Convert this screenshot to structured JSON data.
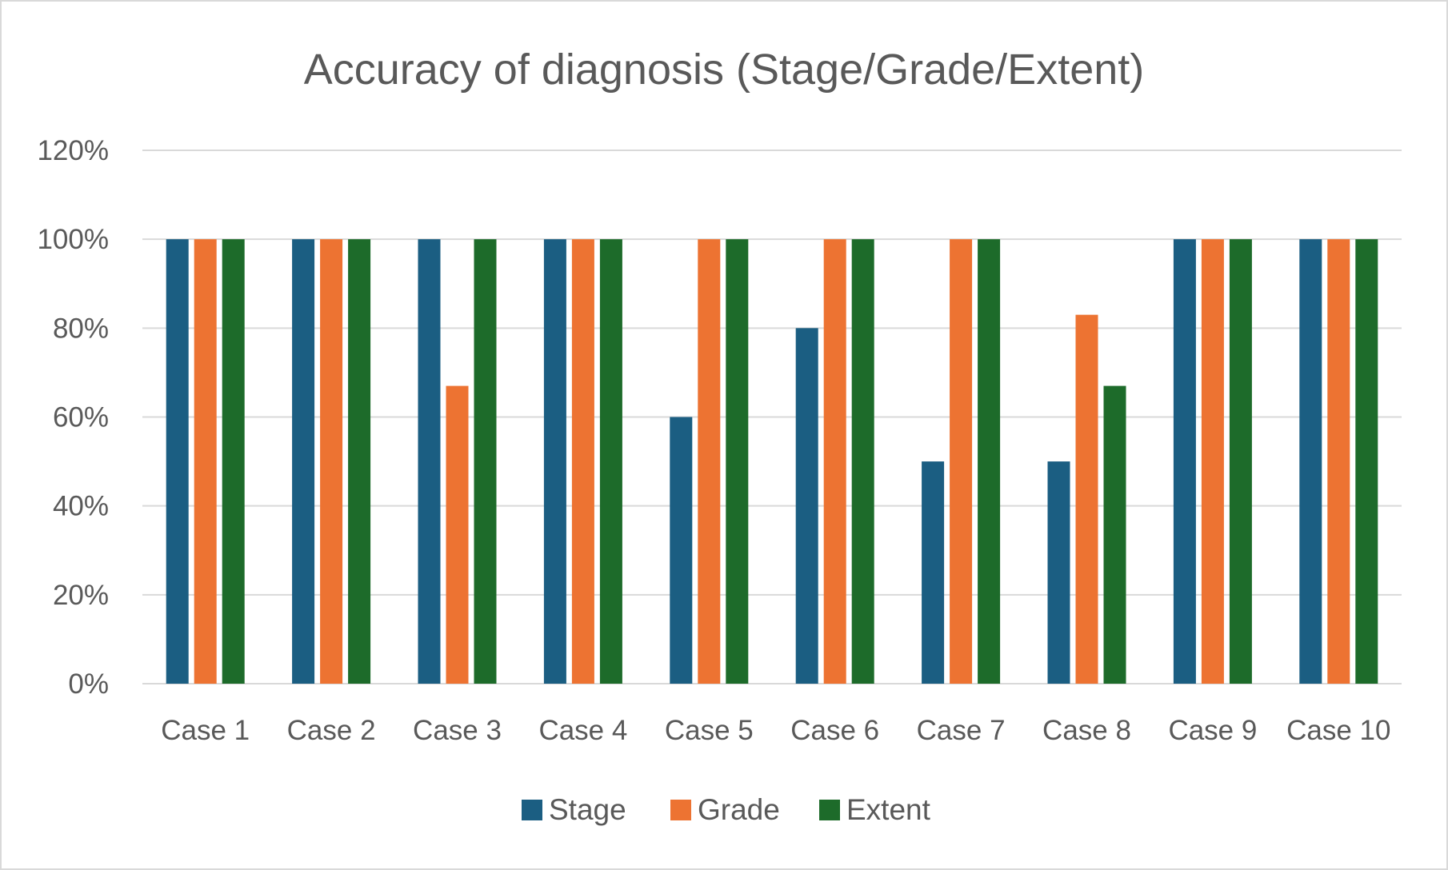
{
  "chart_data": {
    "type": "bar",
    "title": "Accuracy of diagnosis (Stage/Grade/Extent)",
    "xlabel": "",
    "ylabel": "",
    "categories": [
      "Case 1",
      "Case 2",
      "Case 3",
      "Case 4",
      "Case 5",
      "Case 6",
      "Case 7",
      "Case 8",
      "Case 9",
      "Case 10"
    ],
    "series": [
      {
        "name": "Stage",
        "color": "#1b5e82",
        "values": [
          100,
          100,
          100,
          100,
          60,
          80,
          50,
          50,
          100,
          100
        ]
      },
      {
        "name": "Grade",
        "color": "#ed7332",
        "values": [
          100,
          100,
          67,
          100,
          100,
          100,
          100,
          83,
          100,
          100
        ]
      },
      {
        "name": "Extent",
        "color": "#1d6b2a",
        "values": [
          100,
          100,
          100,
          100,
          100,
          100,
          100,
          67,
          100,
          100
        ]
      }
    ],
    "ylim": [
      0,
      120
    ],
    "yticks": [
      0,
      20,
      40,
      60,
      80,
      100,
      120
    ],
    "ytick_labels": [
      "0%",
      "20%",
      "40%",
      "60%",
      "80%",
      "100%",
      "120%"
    ],
    "grid": true,
    "legend_position": "bottom"
  }
}
